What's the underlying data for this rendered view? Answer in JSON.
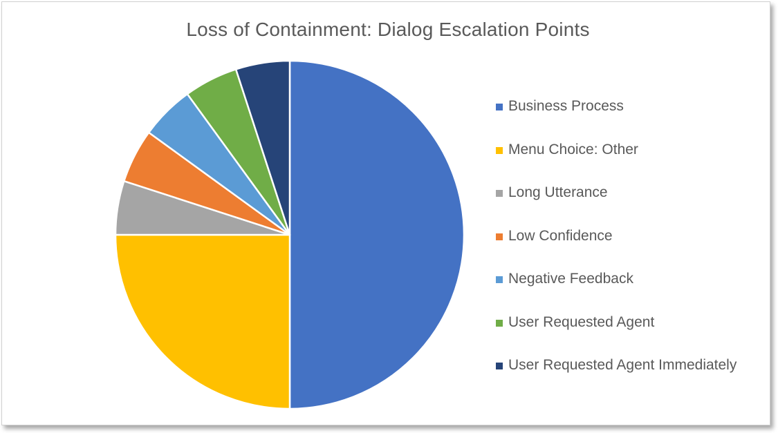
{
  "chart_data": {
    "type": "pie",
    "title": "Loss of Containment: Dialog Escalation Points",
    "legend_position": "right",
    "slice_order": "clockwise from top",
    "categories": [
      "Business Process",
      "Menu Choice: Other",
      "Long Utterance",
      "Low Confidence",
      "Negative Feedback",
      "User Requested Agent",
      "User Requested Agent Immediately"
    ],
    "values": [
      50,
      25,
      5,
      5,
      5,
      5,
      5
    ],
    "colors": [
      "#4472C4",
      "#FFC000",
      "#A5A5A5",
      "#ED7D31",
      "#5B9BD5",
      "#70AD47",
      "#264478"
    ]
  }
}
